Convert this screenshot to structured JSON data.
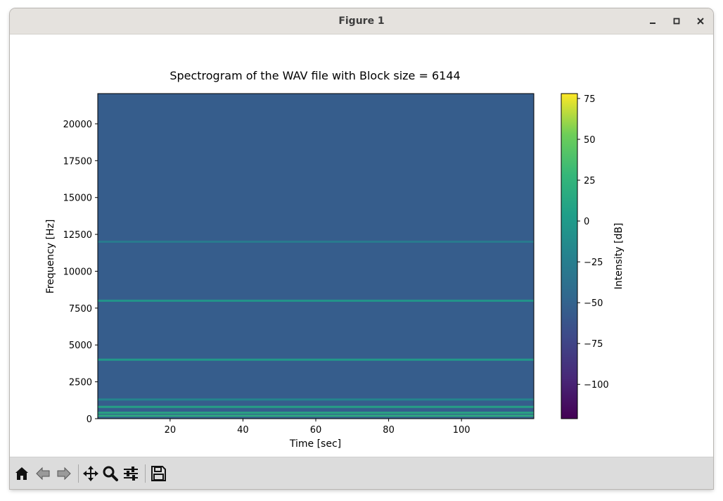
{
  "window": {
    "title": "Figure 1"
  },
  "toolbar": {
    "buttons": [
      "home-icon",
      "back-arrow-icon",
      "forward-arrow-icon",
      "pan-move-icon",
      "zoom-magnifier-icon",
      "configure-subplots-icon",
      "save-floppy-icon"
    ]
  },
  "chart_data": {
    "type": "heatmap",
    "title": "Spectrogram of the WAV file with Block size = 6144",
    "xlabel": "Time [sec]",
    "ylabel": "Frequency [Hz]",
    "xlim": [
      0.14,
      119.86
    ],
    "ylim": [
      0,
      22050
    ],
    "x_ticks": [
      20,
      40,
      60,
      80,
      100
    ],
    "y_ticks": [
      0,
      2500,
      5000,
      7500,
      10000,
      12500,
      15000,
      17500,
      20000
    ],
    "background_level_db": -55,
    "colormap": "viridis",
    "colorbar": {
      "label": "Intensity [dB]",
      "min": -121,
      "max": 78,
      "ticks": [
        -100,
        -75,
        -50,
        -25,
        0,
        25,
        50,
        75
      ]
    },
    "tone_lines": [
      {
        "frequency_hz": 200,
        "intensity_db": 20
      },
      {
        "frequency_hz": 400,
        "intensity_db": 15
      },
      {
        "frequency_hz": 800,
        "intensity_db": 10
      },
      {
        "frequency_hz": 1300,
        "intensity_db": -15
      },
      {
        "frequency_hz": 4000,
        "intensity_db": 5
      },
      {
        "frequency_hz": 8000,
        "intensity_db": 0
      },
      {
        "frequency_hz": 12000,
        "intensity_db": -25
      }
    ]
  }
}
